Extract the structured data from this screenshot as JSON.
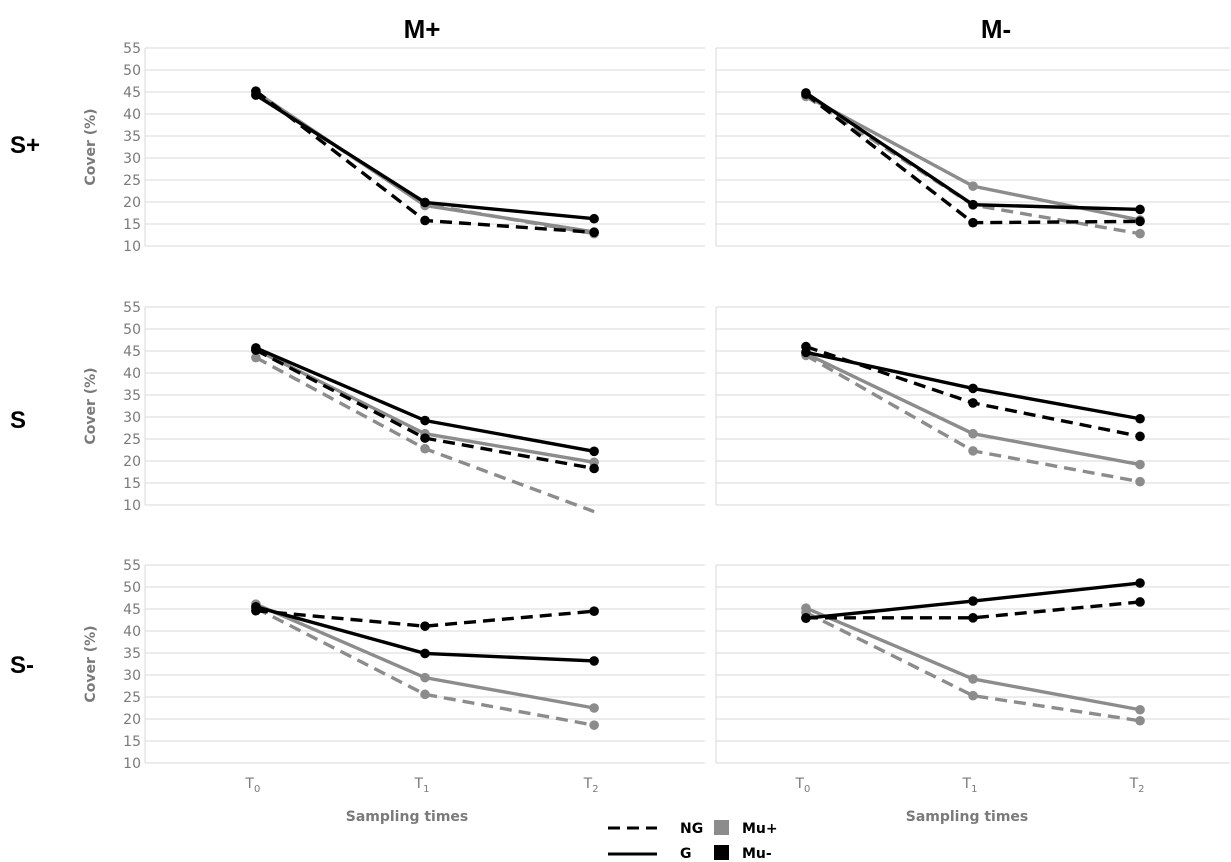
{
  "chart_data": {
    "type": "line",
    "column_headers": [
      "M+",
      "M-"
    ],
    "row_headers": [
      "S+",
      "S",
      "S-"
    ],
    "ylabel": "Cover (%)",
    "xlabel": "Sampling times",
    "ylim": [
      10,
      55
    ],
    "yticks": [
      "10",
      "15",
      "20",
      "25",
      "30",
      "35",
      "40",
      "45",
      "50",
      "55"
    ],
    "x": [
      {
        "main": "T",
        "sub": "0"
      },
      {
        "main": "T",
        "sub": "1"
      },
      {
        "main": "T",
        "sub": "2"
      }
    ],
    "grid": true,
    "legend": {
      "placement": "bottom-center",
      "line_styles": [
        {
          "label": "NG",
          "style": "dashed"
        },
        {
          "label": "G",
          "style": "solid"
        }
      ],
      "colors": [
        {
          "label": "Mu+",
          "color": "#8c8c8c"
        },
        {
          "label": "Mu-",
          "color": "#000000"
        }
      ]
    },
    "panels": [
      {
        "row": "S+",
        "column": "M+",
        "series": [
          {
            "style": "dashed",
            "color": "#8c8c8c",
            "values": [
              44.5,
              19.5,
              12.8
            ]
          },
          {
            "style": "solid",
            "color": "#8c8c8c",
            "values": [
              45,
              19.2,
              13.2
            ]
          },
          {
            "style": "dashed",
            "color": "#000000",
            "values": [
              45.2,
              15.8,
              13.1
            ]
          },
          {
            "style": "solid",
            "color": "#000000",
            "values": [
              44.3,
              19.9,
              16.2
            ]
          }
        ]
      },
      {
        "row": "S+",
        "column": "M-",
        "series": [
          {
            "style": "dashed",
            "color": "#8c8c8c",
            "values": [
              44,
              19.3,
              12.8
            ]
          },
          {
            "style": "solid",
            "color": "#8c8c8c",
            "values": [
              44.1,
              23.6,
              15.9
            ]
          },
          {
            "style": "dashed",
            "color": "#000000",
            "values": [
              44.5,
              15.3,
              15.6
            ]
          },
          {
            "style": "solid",
            "color": "#000000",
            "values": [
              44.8,
              19.4,
              18.3
            ]
          }
        ]
      },
      {
        "row": "S",
        "column": "M+",
        "series": [
          {
            "style": "dashed",
            "color": "#8c8c8c",
            "values": [
              43.5,
              22.8,
              8.5
            ]
          },
          {
            "style": "solid",
            "color": "#8c8c8c",
            "values": [
              45.3,
              26.2,
              19.7
            ]
          },
          {
            "style": "dashed",
            "color": "#000000",
            "values": [
              45.2,
              25.2,
              18.3
            ]
          },
          {
            "style": "solid",
            "color": "#000000",
            "values": [
              45.7,
              29.2,
              22.2
            ]
          }
        ]
      },
      {
        "row": "S",
        "column": "M-",
        "series": [
          {
            "style": "dashed",
            "color": "#8c8c8c",
            "values": [
              44,
              22.3,
              15.3
            ]
          },
          {
            "style": "solid",
            "color": "#8c8c8c",
            "values": [
              44.4,
              26.2,
              19.2
            ]
          },
          {
            "style": "dashed",
            "color": "#000000",
            "values": [
              46,
              33.2,
              25.6
            ]
          },
          {
            "style": "solid",
            "color": "#000000",
            "values": [
              44.7,
              36.5,
              29.6
            ]
          }
        ]
      },
      {
        "row": "S-",
        "column": "M+",
        "series": [
          {
            "style": "dashed",
            "color": "#8c8c8c",
            "values": [
              45.2,
              25.6,
              18.6
            ]
          },
          {
            "style": "solid",
            "color": "#8c8c8c",
            "values": [
              46.1,
              29.4,
              22.5
            ]
          },
          {
            "style": "dashed",
            "color": "#000000",
            "values": [
              44.6,
              41.1,
              44.5
            ]
          },
          {
            "style": "solid",
            "color": "#000000",
            "values": [
              45.5,
              34.9,
              33.2
            ]
          }
        ]
      },
      {
        "row": "S-",
        "column": "M-",
        "series": [
          {
            "style": "dashed",
            "color": "#8c8c8c",
            "values": [
              44.2,
              25.3,
              19.6
            ]
          },
          {
            "style": "solid",
            "color": "#8c8c8c",
            "values": [
              45.2,
              29.1,
              22.1
            ]
          },
          {
            "style": "dashed",
            "color": "#000000",
            "values": [
              43,
              43,
              46.6
            ]
          },
          {
            "style": "solid",
            "color": "#000000",
            "values": [
              42.9,
              46.8,
              50.9
            ]
          }
        ]
      }
    ]
  }
}
